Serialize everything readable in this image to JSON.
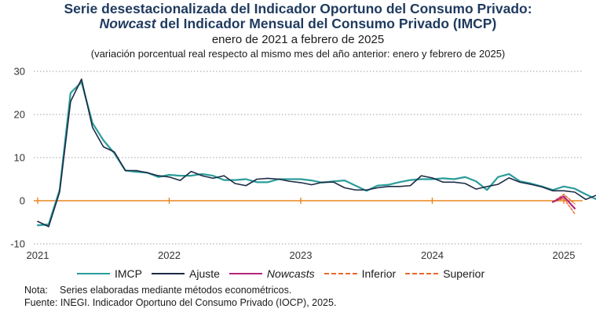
{
  "header": {
    "title_line1": "Serie desestacionalizada del Indicador Oportuno del Consumo Privado:",
    "title_line2_italic": "Nowcast",
    "title_line2_rest": " del Indicador Mensual del Consumo Privado (IMCP)",
    "subtitle": "enero de 2021 a febrero de 2025",
    "subtitle2": "(variación porcentual real respecto al mismo mes del año anterior: enero y febrero de 2025)"
  },
  "colors": {
    "imcp": "#2a9d9a",
    "ajuste": "#1c2b45",
    "nowcasts": "#b5267a",
    "inferior": "#e8692b",
    "superior": "#e8692b",
    "zero_line": "#e8861e",
    "grid": "#a0a0a0"
  },
  "chart_data": {
    "type": "line",
    "x_labels": [
      "2021",
      "2022",
      "2023",
      "2024",
      "2025"
    ],
    "y_ticks": [
      "30",
      "20",
      "10",
      "0",
      "-10"
    ],
    "ylim": [
      -10,
      30
    ],
    "grid": "horizontal dotted",
    "legend_position": "bottom",
    "series": [
      {
        "name": "IMCP",
        "start": "2021-01",
        "values": [
          -5.7,
          -5.5,
          2.5,
          25.0,
          27.5,
          18.0,
          14.0,
          11.0,
          7.0,
          6.7,
          6.5,
          5.5,
          6.0,
          5.8,
          5.8,
          6.2,
          5.8,
          4.8,
          4.8,
          5.0,
          4.3,
          4.3,
          5.0,
          5.0,
          5.0,
          4.7,
          4.2,
          4.5,
          4.7,
          3.5,
          2.3,
          3.5,
          3.7,
          4.3,
          4.8,
          5.0,
          5.0,
          5.2,
          5.0,
          5.5,
          4.5,
          2.5,
          5.5,
          6.2,
          4.5,
          4.0,
          3.3,
          2.5,
          3.3,
          2.8,
          1.5,
          0.3,
          0.5,
          -0.3
        ]
      },
      {
        "name": "Ajuste",
        "start": "2021-01",
        "values": [
          -4.8,
          -6.0,
          2.0,
          23.0,
          28.2,
          17.0,
          12.5,
          11.3,
          7.0,
          7.0,
          6.5,
          5.8,
          5.5,
          4.7,
          6.8,
          5.8,
          5.2,
          5.8,
          4.0,
          3.5,
          5.0,
          5.2,
          5.0,
          4.5,
          4.2,
          3.7,
          4.3,
          4.3,
          3.0,
          2.5,
          2.5,
          3.0,
          3.3,
          3.3,
          3.5,
          5.8,
          5.3,
          4.3,
          4.3,
          4.0,
          2.7,
          3.3,
          3.8,
          5.3,
          4.3,
          3.8,
          3.2,
          2.3,
          2.3,
          2.0,
          0.3,
          1.3,
          1.2,
          0.8
        ]
      },
      {
        "name": "Nowcasts",
        "start": "2024-12",
        "values": [
          -0.3,
          1.0,
          -1.8
        ]
      },
      {
        "name": "Inferior",
        "start": "2024-12",
        "values": [
          -0.3,
          0.5,
          -3.0
        ]
      },
      {
        "name": "Superior",
        "start": "2024-12",
        "values": [
          -0.3,
          1.5,
          -0.7
        ]
      }
    ]
  },
  "legend": {
    "imcp": "IMCP",
    "ajuste": "Ajuste",
    "nowcasts": "Nowcasts",
    "inferior": "Inferior",
    "superior": "Superior"
  },
  "footer": {
    "note_label": "Nota:",
    "note_text": "Series elaboradas mediante métodos econométricos.",
    "source": "Fuente: INEGI. Indicador Oportuno del Consumo Privado (IOCP), 2025."
  }
}
